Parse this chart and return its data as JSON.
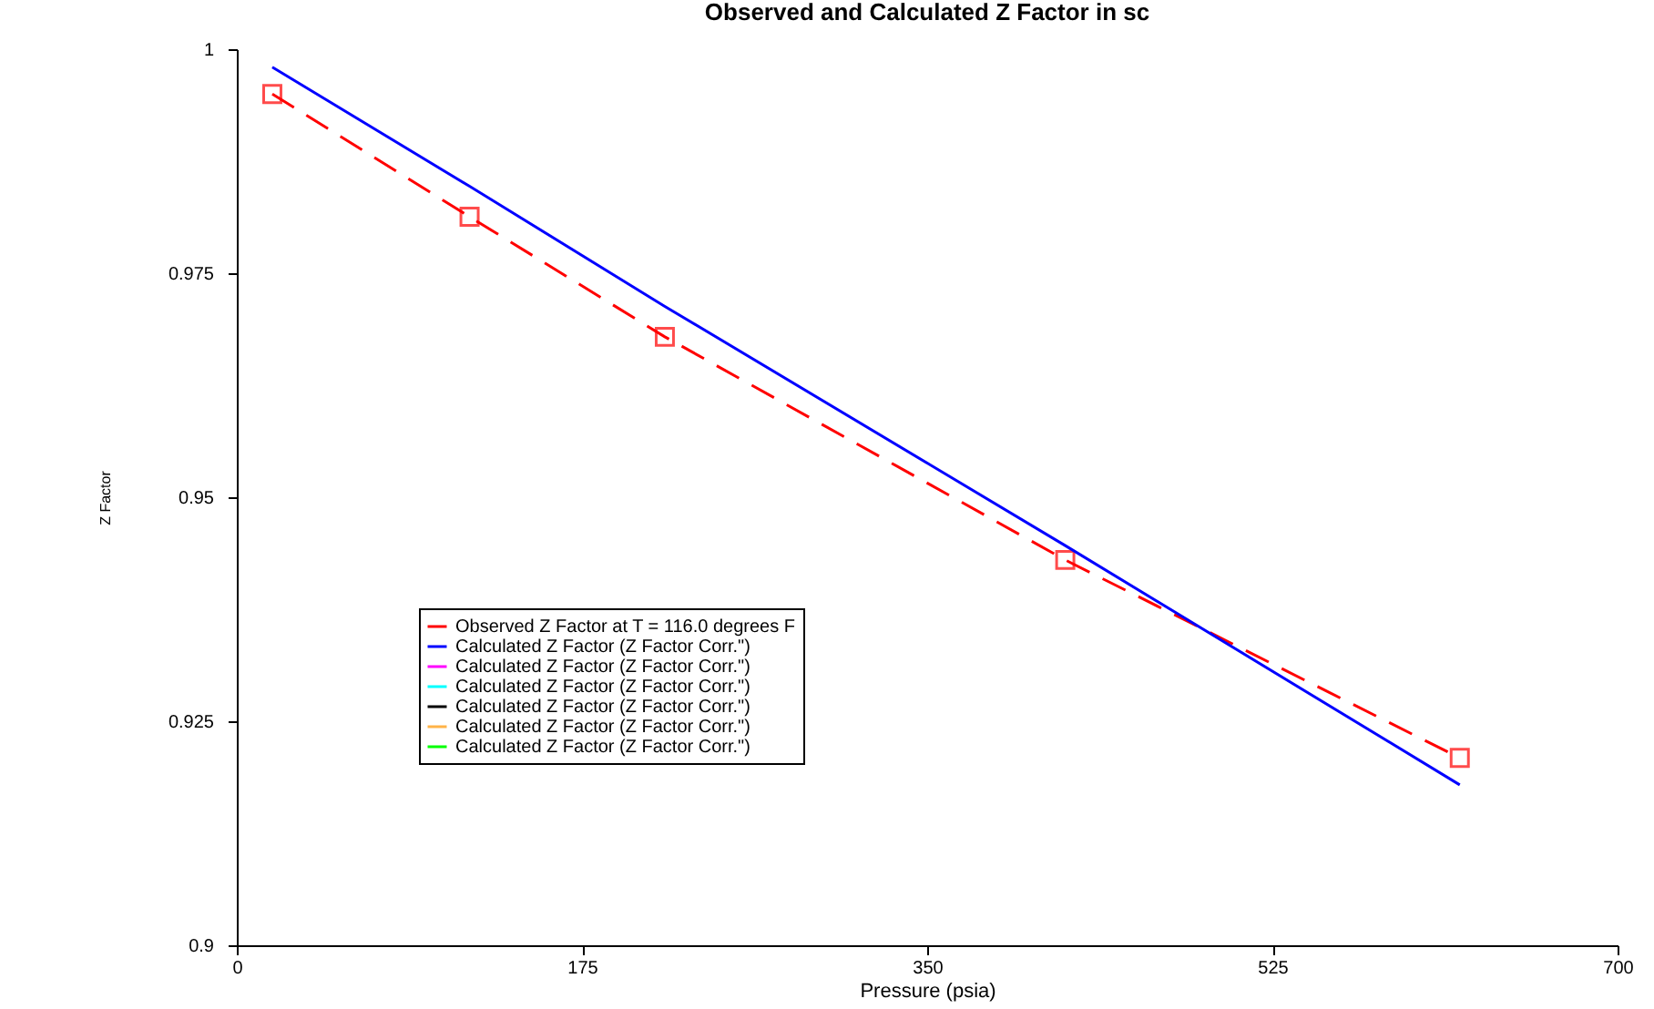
{
  "chart_data": {
    "type": "line",
    "title": "Observed and Calculated Z Factor in sc",
    "xlabel": "Pressure (psia)",
    "ylabel": "Z Factor",
    "x": [
      18,
      118,
      217,
      420,
      620
    ],
    "xlim": [
      0,
      700
    ],
    "xticks": [
      0,
      175,
      350,
      525,
      700
    ],
    "ylim": [
      0.9,
      1
    ],
    "yticks": [
      0.9,
      0.925,
      0.95,
      0.975,
      1
    ],
    "grid": false,
    "legend": "bottom left",
    "series": [
      {
        "name": "Observed Z Factor at T = 116.0 degrees F",
        "color": "#ff0000",
        "marker": "square",
        "line_style": "dashed",
        "values": [
          0.995,
          0.9813,
          0.9679,
          0.943,
          0.9209
        ]
      },
      {
        "name": "Calculated Z Factor (Z Factor Corr.\")",
        "color": "#0000ff",
        "marker": "none",
        "line_style": "solid",
        "values": [
          0.998,
          0.9847,
          0.9713,
          0.9446,
          0.9179
        ]
      },
      {
        "name": "Calculated Z Factor (Z Factor Corr.\")",
        "color": "#ff00ff",
        "marker": "none",
        "line_style": "solid",
        "values": [
          null,
          null,
          null,
          null,
          null
        ]
      },
      {
        "name": "Calculated Z Factor (Z Factor Corr.\")",
        "color": "#00ffff",
        "marker": "none",
        "line_style": "solid",
        "values": [
          null,
          null,
          null,
          null,
          null
        ]
      },
      {
        "name": "Calculated Z Factor (Z Factor Corr.\")",
        "color": "#000000",
        "marker": "none",
        "line_style": "solid",
        "values": [
          null,
          null,
          null,
          null,
          null
        ]
      },
      {
        "name": "Calculated Z Factor (Z Factor Corr.\")",
        "color": "#ffb347",
        "marker": "none",
        "line_style": "solid",
        "values": [
          null,
          null,
          null,
          null,
          null
        ]
      },
      {
        "name": "Calculated Z Factor (Z Factor Corr.\")",
        "color": "#00ff00",
        "marker": "none",
        "line_style": "solid",
        "values": [
          null,
          null,
          null,
          null,
          null
        ]
      }
    ]
  }
}
